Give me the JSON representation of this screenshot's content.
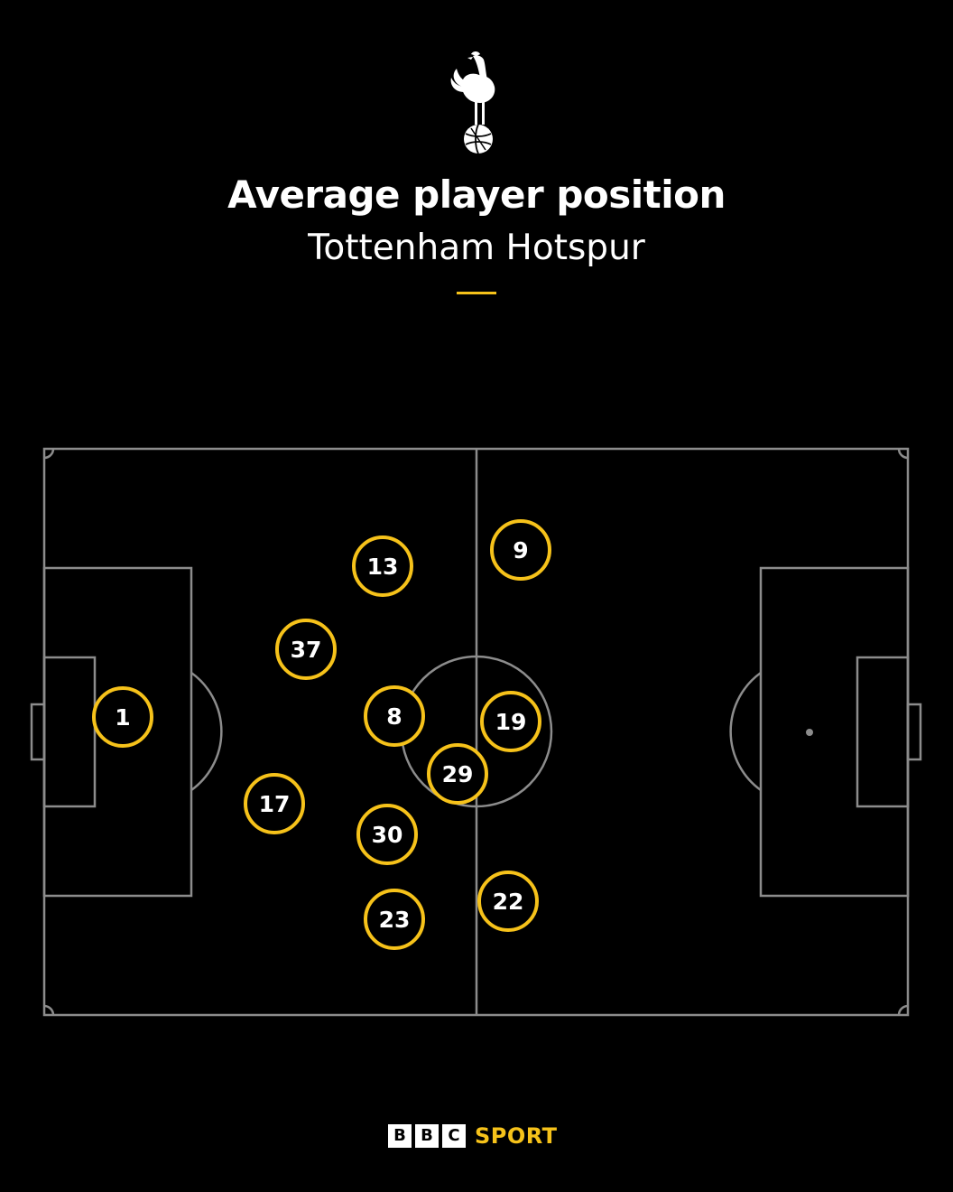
{
  "header": {
    "crest_icon": "cockerel-on-ball-crest",
    "title": "Average player position",
    "subtitle": "Tottenham Hotspur"
  },
  "colors": {
    "background": "#000000",
    "pitch_lines": "#8c8c8c",
    "marker_ring": "#f6c21a",
    "text": "#ffffff",
    "accent": "#f6c21a"
  },
  "players": [
    {
      "number": "1"
    },
    {
      "number": "13"
    },
    {
      "number": "9"
    },
    {
      "number": "37"
    },
    {
      "number": "8"
    },
    {
      "number": "19"
    },
    {
      "number": "29"
    },
    {
      "number": "17"
    },
    {
      "number": "30"
    },
    {
      "number": "23"
    },
    {
      "number": "22"
    }
  ],
  "footer": {
    "brand_blocks": [
      "B",
      "B",
      "C"
    ],
    "brand_word": "SPORT"
  }
}
